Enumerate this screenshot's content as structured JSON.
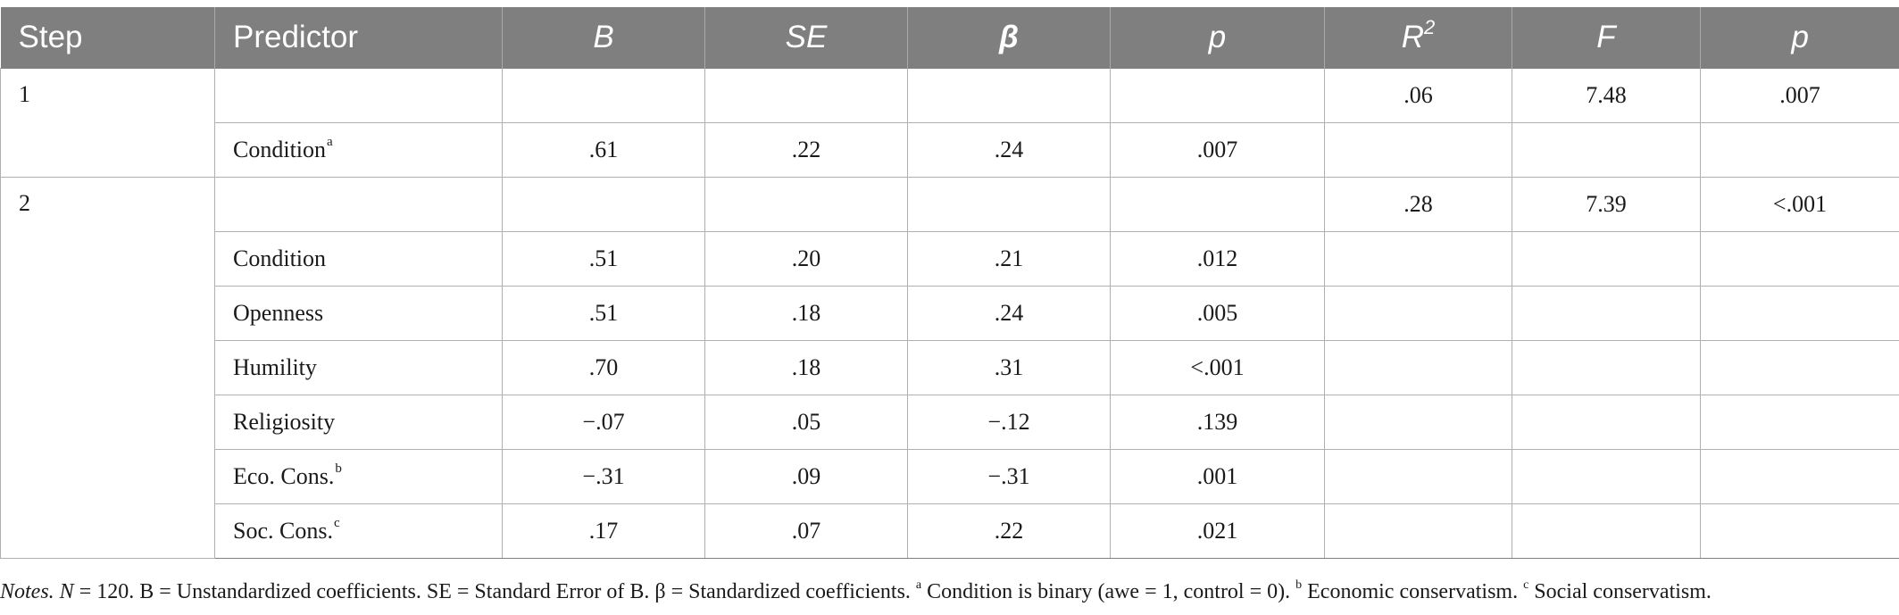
{
  "table": {
    "headers": {
      "step": "Step",
      "predictor": "Predictor",
      "b": "B",
      "se": "SE",
      "beta": "β",
      "p": "p",
      "r2_base": "R",
      "r2_sup": "2",
      "f": "F",
      "p2": "p"
    },
    "steps": [
      {
        "step": "1",
        "summary": {
          "r2": ".06",
          "f": "7.48",
          "p": ".007"
        },
        "rows": [
          {
            "predictor": "Condition",
            "sup": "a",
            "b": ".61",
            "se": ".22",
            "beta": ".24",
            "p": ".007"
          }
        ]
      },
      {
        "step": "2",
        "summary": {
          "r2": ".28",
          "f": "7.39",
          "p": "<.001"
        },
        "rows": [
          {
            "predictor": "Condition",
            "sup": "",
            "b": ".51",
            "se": ".20",
            "beta": ".21",
            "p": ".012"
          },
          {
            "predictor": "Openness",
            "sup": "",
            "b": ".51",
            "se": ".18",
            "beta": ".24",
            "p": ".005"
          },
          {
            "predictor": "Humility",
            "sup": "",
            "b": ".70",
            "se": ".18",
            "beta": ".31",
            "p": "<.001"
          },
          {
            "predictor": "Religiosity",
            "sup": "",
            "b": "−.07",
            "se": ".05",
            "beta": "−.12",
            "p": ".139"
          },
          {
            "predictor": "Eco. Cons.",
            "sup": "b",
            "b": "−.31",
            "se": ".09",
            "beta": "−.31",
            "p": ".001"
          },
          {
            "predictor": "Soc. Cons.",
            "sup": "c",
            "b": ".17",
            "se": ".07",
            "beta": ".22",
            "p": ".021"
          }
        ]
      }
    ]
  },
  "notes": {
    "label": "Notes.",
    "n_symbol": "N",
    "text1": " = 120. B = Unstandardized coefficients. SE = Standard Error of B. β = Standardized coefficients. ",
    "sup_a": "a",
    "text_a": " Condition is binary (awe = 1, control = 0). ",
    "sup_b": "b",
    "text_b": " Economic conservatism. ",
    "sup_c": "c",
    "text_c": " Social conservatism."
  },
  "colors": {
    "header_bg": "#7f7f7f",
    "header_text": "#ffffff",
    "grid": "#b0b0b0"
  }
}
